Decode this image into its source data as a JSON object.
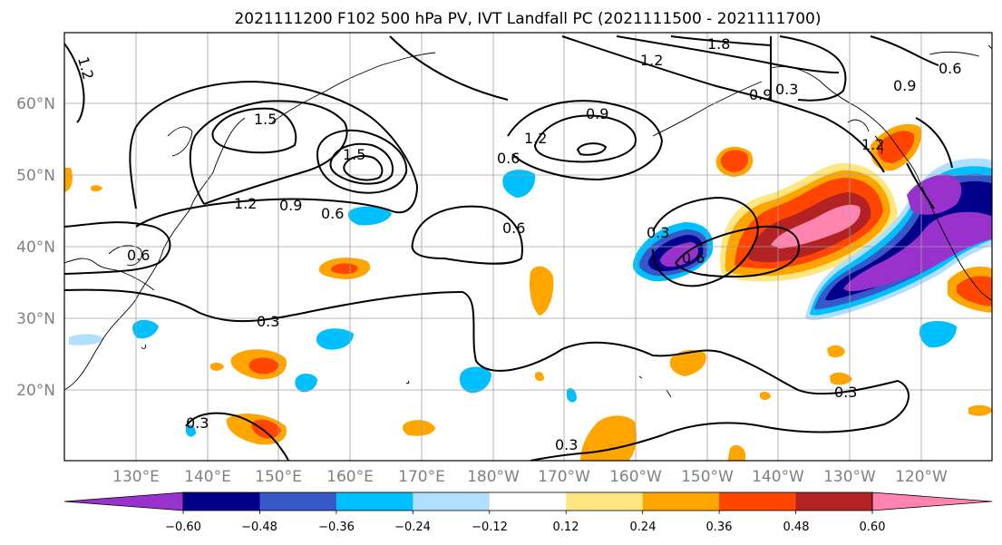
{
  "title": "2021111200 F102 500 hPa PV, IVT Landfall PC (2021111500 - 2021111700)",
  "map": {
    "lon_labels": [
      "130°E",
      "140°E",
      "150°E",
      "160°E",
      "170°E",
      "180°W",
      "170°W",
      "160°W",
      "150°W",
      "140°W",
      "130°W",
      "120°W"
    ],
    "lat_labels": [
      "60°N",
      "50°N",
      "40°N",
      "30°N",
      "20°N"
    ],
    "pv_contour_labels": [
      "1.2",
      "1.5",
      "1.5",
      "1.2",
      "0.9",
      "0.6",
      "0.6",
      "0.3",
      "0.9",
      "1.2",
      "0.6",
      "0.6",
      "1.8",
      "1.2",
      "0.9",
      "0.6",
      "0.9",
      "1.2",
      "0.3",
      "0.3",
      "0.3",
      "0.3",
      "0.3",
      "0.6"
    ]
  },
  "colorbar": {
    "ticks": [
      "−0.60",
      "−0.48",
      "−0.36",
      "−0.24",
      "−0.12",
      "0.12",
      "0.24",
      "0.36",
      "0.48",
      "0.60"
    ],
    "colors": [
      "#9932cc",
      "#00008b",
      "#3658c8",
      "#00bfff",
      "#b0e0ff",
      "#ffffff",
      "#ffe680",
      "#ffa500",
      "#ff4500",
      "#b22222",
      "#ff85b0"
    ]
  }
}
